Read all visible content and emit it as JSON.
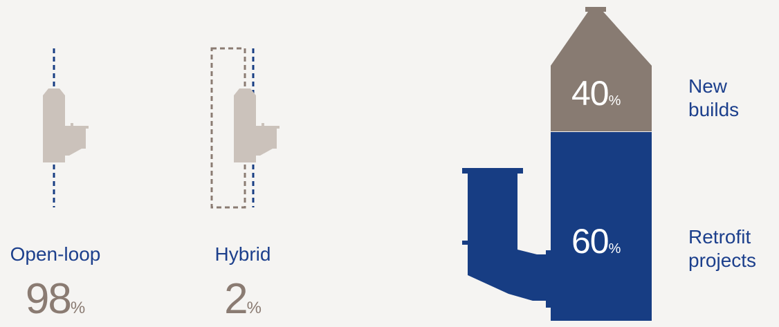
{
  "left": {
    "items": [
      {
        "label": "Open-loop",
        "value": "98",
        "unit": "%"
      },
      {
        "label": "Hybrid",
        "value": "2",
        "unit": "%"
      }
    ]
  },
  "right": {
    "segments": [
      {
        "value": "40",
        "unit": "%",
        "label_line1": "New",
        "label_line2": "builds"
      },
      {
        "value": "60",
        "unit": "%",
        "label_line1": "Retrofit",
        "label_line2": "projects"
      }
    ]
  },
  "colors": {
    "blue": "#173d83",
    "taupe": "#887b72",
    "light_taupe": "#cbc2bb",
    "text_blue": "#1c3f8c",
    "background": "#f5f4f2"
  }
}
